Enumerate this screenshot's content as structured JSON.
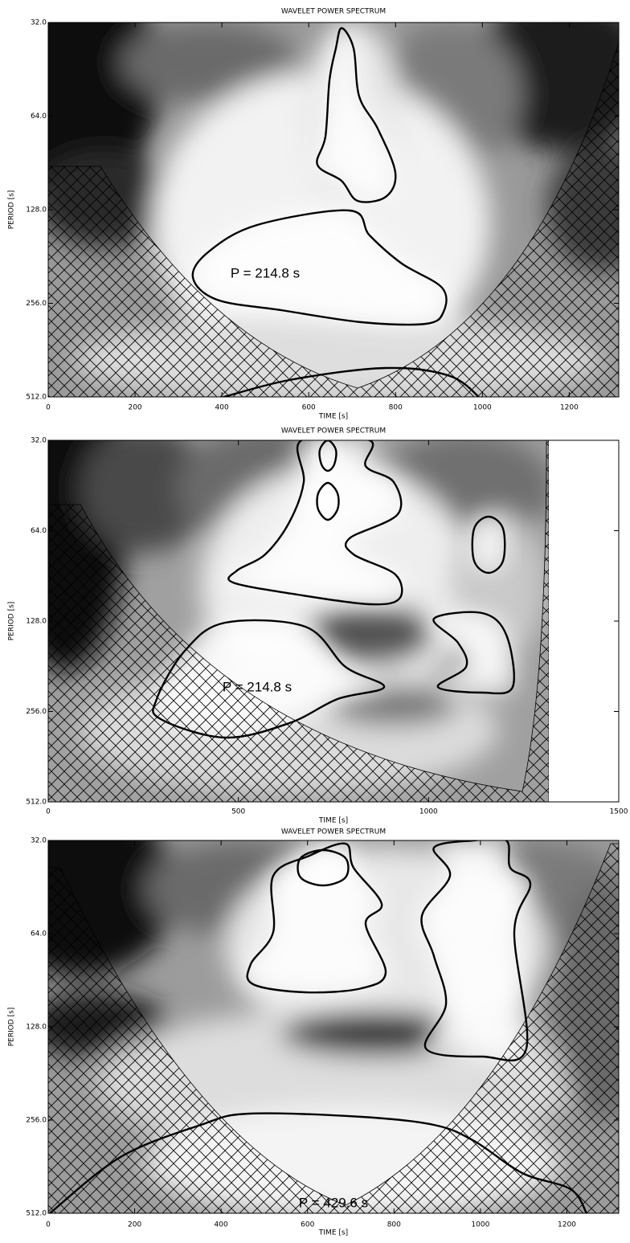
{
  "chart_data": [
    {
      "type": "contour",
      "title": "WAVELET POWER SPECTRUM",
      "xlabel": "TIME [s]",
      "ylabel": "PERIOD [s]",
      "annotation": "P = 214.8 s",
      "xlim": [
        0,
        1314
      ],
      "xticks": [
        0,
        200,
        400,
        600,
        800,
        1000,
        1200
      ],
      "ylim": [
        32,
        512
      ],
      "y_scale": "log",
      "y_inverted": true,
      "yticks": [
        {
          "value": 32,
          "label": "32.0"
        },
        {
          "value": 64,
          "label": "64.0"
        },
        {
          "value": 128,
          "label": "128.0"
        },
        {
          "value": 256,
          "label": "256.0"
        },
        {
          "value": 512,
          "label": "512.0"
        }
      ]
    },
    {
      "type": "contour",
      "title": "WAVELET POWER SPECTRUM",
      "xlabel": "TIME [s]",
      "ylabel": "PERIOD [s]",
      "annotation": "P = 214.8 s",
      "xlim": [
        0,
        1500
      ],
      "xticks": [
        0,
        500,
        1000,
        1500
      ],
      "ylim": [
        32,
        512
      ],
      "y_scale": "log",
      "y_inverted": true,
      "yticks": [
        {
          "value": 32,
          "label": "32.0"
        },
        {
          "value": 64,
          "label": "64.0"
        },
        {
          "value": 128,
          "label": "128.0"
        },
        {
          "value": 256,
          "label": "256.0"
        },
        {
          "value": 512,
          "label": "512.0"
        }
      ]
    },
    {
      "type": "contour",
      "title": "WAVELET POWER SPECTRUM",
      "xlabel": "TIME [s]",
      "ylabel": "PERIOD [s]",
      "annotation": "P = 429.6 s",
      "xlim": [
        0,
        1320
      ],
      "xticks": [
        0,
        200,
        400,
        600,
        800,
        1000,
        1200
      ],
      "ylim": [
        32,
        512
      ],
      "y_scale": "log",
      "y_inverted": true,
      "yticks": [
        {
          "value": 32,
          "label": "32.0"
        },
        {
          "value": 64,
          "label": "64.0"
        },
        {
          "value": 128,
          "label": "128.0"
        },
        {
          "value": 256,
          "label": "256.0"
        },
        {
          "value": 512,
          "label": "512.0"
        }
      ]
    }
  ]
}
